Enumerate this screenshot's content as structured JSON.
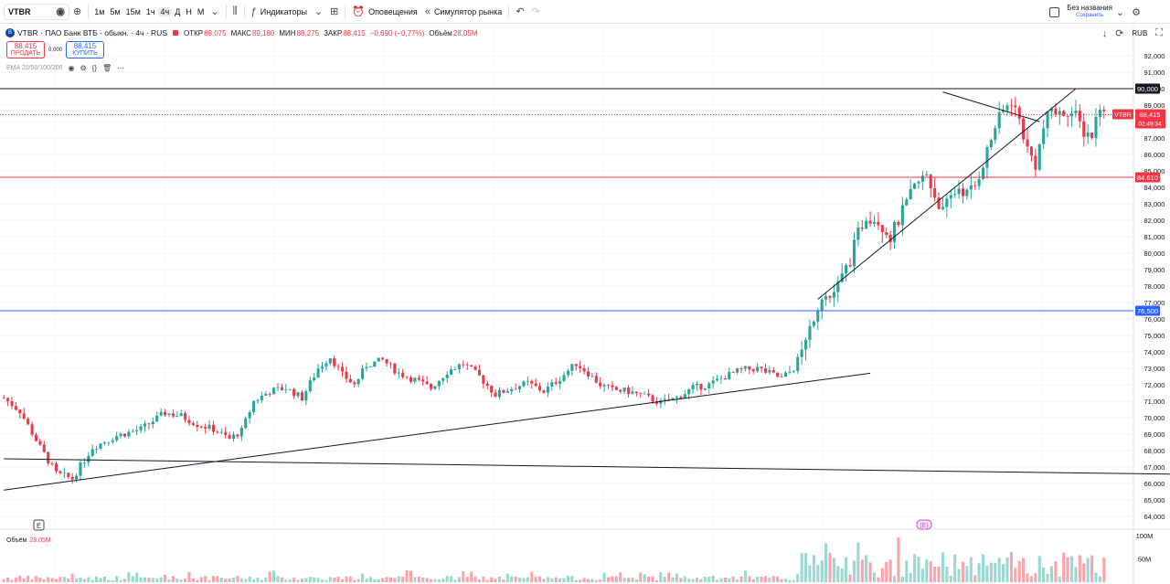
{
  "toolbar": {
    "symbol": "VTBR",
    "intervals": [
      "1м",
      "5м",
      "15м",
      "1ч",
      "4ч",
      "Д",
      "Н",
      "М"
    ],
    "active_interval": "4ч",
    "indicators_label": "Индикаторы",
    "alerts_label": "Оповещения",
    "replay_label": "Симулятор рынка",
    "layout_title": "Без названия",
    "layout_sub": "Сохранить"
  },
  "legend": {
    "title": "VTBR · ПАО Банк ВТБ - обыкн. · 4ч · RUS",
    "open_label": "ОТКР",
    "open": "89,075",
    "high_label": "МАКС",
    "high": "89,180",
    "low_label": "МИН",
    "low": "88,275",
    "close_label": "ЗАКР",
    "close": "88,415",
    "change": "−0,690 (−0,77%)",
    "volume_label": "Объём",
    "volume": "28,05M"
  },
  "trade": {
    "sell_price": "88,415",
    "sell_label": "ПРОДАТЬ",
    "spread": "0,000",
    "buy_price": "88,415",
    "buy_label": "КУПИТЬ"
  },
  "indicator_row": {
    "label": "EMA 20/50/100/200"
  },
  "volume_pane": {
    "label": "Объём",
    "value": "28,05M"
  },
  "axis": {
    "currency": "RUB"
  },
  "markers": {
    "earnings": "E",
    "dividends": "(E)"
  },
  "colors": {
    "up": "#26a69a",
    "down": "#f23645",
    "hline_blue": "#2962ff",
    "hline_red": "#f23645",
    "text": "#131722"
  },
  "chart_data": {
    "type": "candlestick",
    "interval": "4ч",
    "y_ticks": [
      "92,000",
      "91,000",
      "90,000",
      "89,000",
      "88,000",
      "87,000",
      "86,000",
      "85,000",
      "84,000",
      "83,000",
      "82,000",
      "81,000",
      "80,000",
      "79,000",
      "78,000",
      "77,000",
      "76,000",
      "75,000",
      "74,000",
      "73,000",
      "72,000",
      "71,000",
      "70,000",
      "69,000",
      "68,000",
      "67,000",
      "66,000",
      "65,000",
      "64,000"
    ],
    "ylim": [
      63.5,
      92.5
    ],
    "volume_ticks": [
      "100M",
      "50M"
    ],
    "volume_ylim": [
      0,
      110
    ],
    "price_path": [
      [
        0,
        71.2
      ],
      [
        4,
        70.4
      ],
      [
        9,
        68.2
      ],
      [
        13,
        66.6
      ],
      [
        17,
        66.3
      ],
      [
        22,
        68.2
      ],
      [
        28,
        68.9
      ],
      [
        34,
        69.3
      ],
      [
        40,
        70.3
      ],
      [
        44,
        70.1
      ],
      [
        48,
        69.6
      ],
      [
        52,
        69.3
      ],
      [
        56,
        68.7
      ],
      [
        59,
        69.2
      ],
      [
        62,
        71.0
      ],
      [
        66,
        71.6
      ],
      [
        70,
        71.8
      ],
      [
        74,
        71.2
      ],
      [
        78,
        73.0
      ],
      [
        81,
        73.7
      ],
      [
        84,
        72.6
      ],
      [
        87,
        72.0
      ],
      [
        90,
        73.2
      ],
      [
        94,
        73.5
      ],
      [
        98,
        72.7
      ],
      [
        102,
        72.3
      ],
      [
        106,
        71.8
      ],
      [
        110,
        72.8
      ],
      [
        114,
        73.3
      ],
      [
        118,
        72.5
      ],
      [
        122,
        71.4
      ],
      [
        126,
        71.8
      ],
      [
        130,
        72.1
      ],
      [
        134,
        71.6
      ],
      [
        138,
        72.4
      ],
      [
        142,
        73.3
      ],
      [
        145,
        72.7
      ],
      [
        148,
        72.0
      ],
      [
        151,
        71.7
      ],
      [
        155,
        71.6
      ],
      [
        159,
        71.3
      ],
      [
        163,
        70.9
      ],
      [
        167,
        71.2
      ],
      [
        171,
        71.8
      ],
      [
        175,
        72.0
      ],
      [
        179,
        72.5
      ],
      [
        183,
        72.9
      ],
      [
        187,
        73.0
      ],
      [
        190,
        72.7
      ],
      [
        193,
        72.4
      ],
      [
        196,
        73.0
      ],
      [
        199,
        74.6
      ],
      [
        201,
        76.2
      ],
      [
        203,
        77.5
      ],
      [
        205,
        77.3
      ],
      [
        207,
        78.0
      ],
      [
        210,
        79.6
      ],
      [
        212,
        81.2
      ],
      [
        214,
        82.3
      ],
      [
        217,
        82.0
      ],
      [
        220,
        81.0
      ],
      [
        223,
        82.5
      ],
      [
        226,
        84.0
      ],
      [
        229,
        84.8
      ],
      [
        231,
        83.5
      ],
      [
        233,
        82.5
      ],
      [
        235,
        83.4
      ],
      [
        237,
        84.0
      ],
      [
        239,
        83.6
      ],
      [
        241,
        84.1
      ],
      [
        244,
        86.2
      ],
      [
        246,
        87.7
      ],
      [
        248,
        88.6
      ],
      [
        250,
        89.3
      ],
      [
        252,
        88.1
      ],
      [
        254,
        86.3
      ],
      [
        256,
        85.4
      ],
      [
        258,
        87.6
      ],
      [
        260,
        88.8
      ],
      [
        262,
        88.4
      ],
      [
        264,
        88.7
      ],
      [
        266,
        88.3
      ],
      [
        268,
        87.4
      ],
      [
        270,
        87.2
      ],
      [
        272,
        89.1
      ],
      [
        273,
        88.4
      ]
    ],
    "last_price": "88,415",
    "last_countdown": "02:49:34",
    "last_label": "VTBR",
    "hlines": [
      {
        "price": 90.0,
        "label": "90,000",
        "color": "#131722"
      },
      {
        "price": 84.61,
        "label": "84,610",
        "color": "#f23645"
      },
      {
        "price": 76.5,
        "label": "76,500",
        "color": "#2962ff"
      }
    ],
    "trendlines": [
      {
        "from": [
          0,
          65.6
        ],
        "to": [
          215,
          72.7
        ]
      },
      {
        "from": [
          0,
          67.5
        ],
        "to": [
          310,
          66.5
        ]
      },
      {
        "from": [
          202,
          77.2
        ],
        "to": [
          266,
          90.0
        ]
      },
      {
        "from": [
          233,
          89.8
        ],
        "to": [
          257,
          88.0
        ]
      }
    ]
  }
}
